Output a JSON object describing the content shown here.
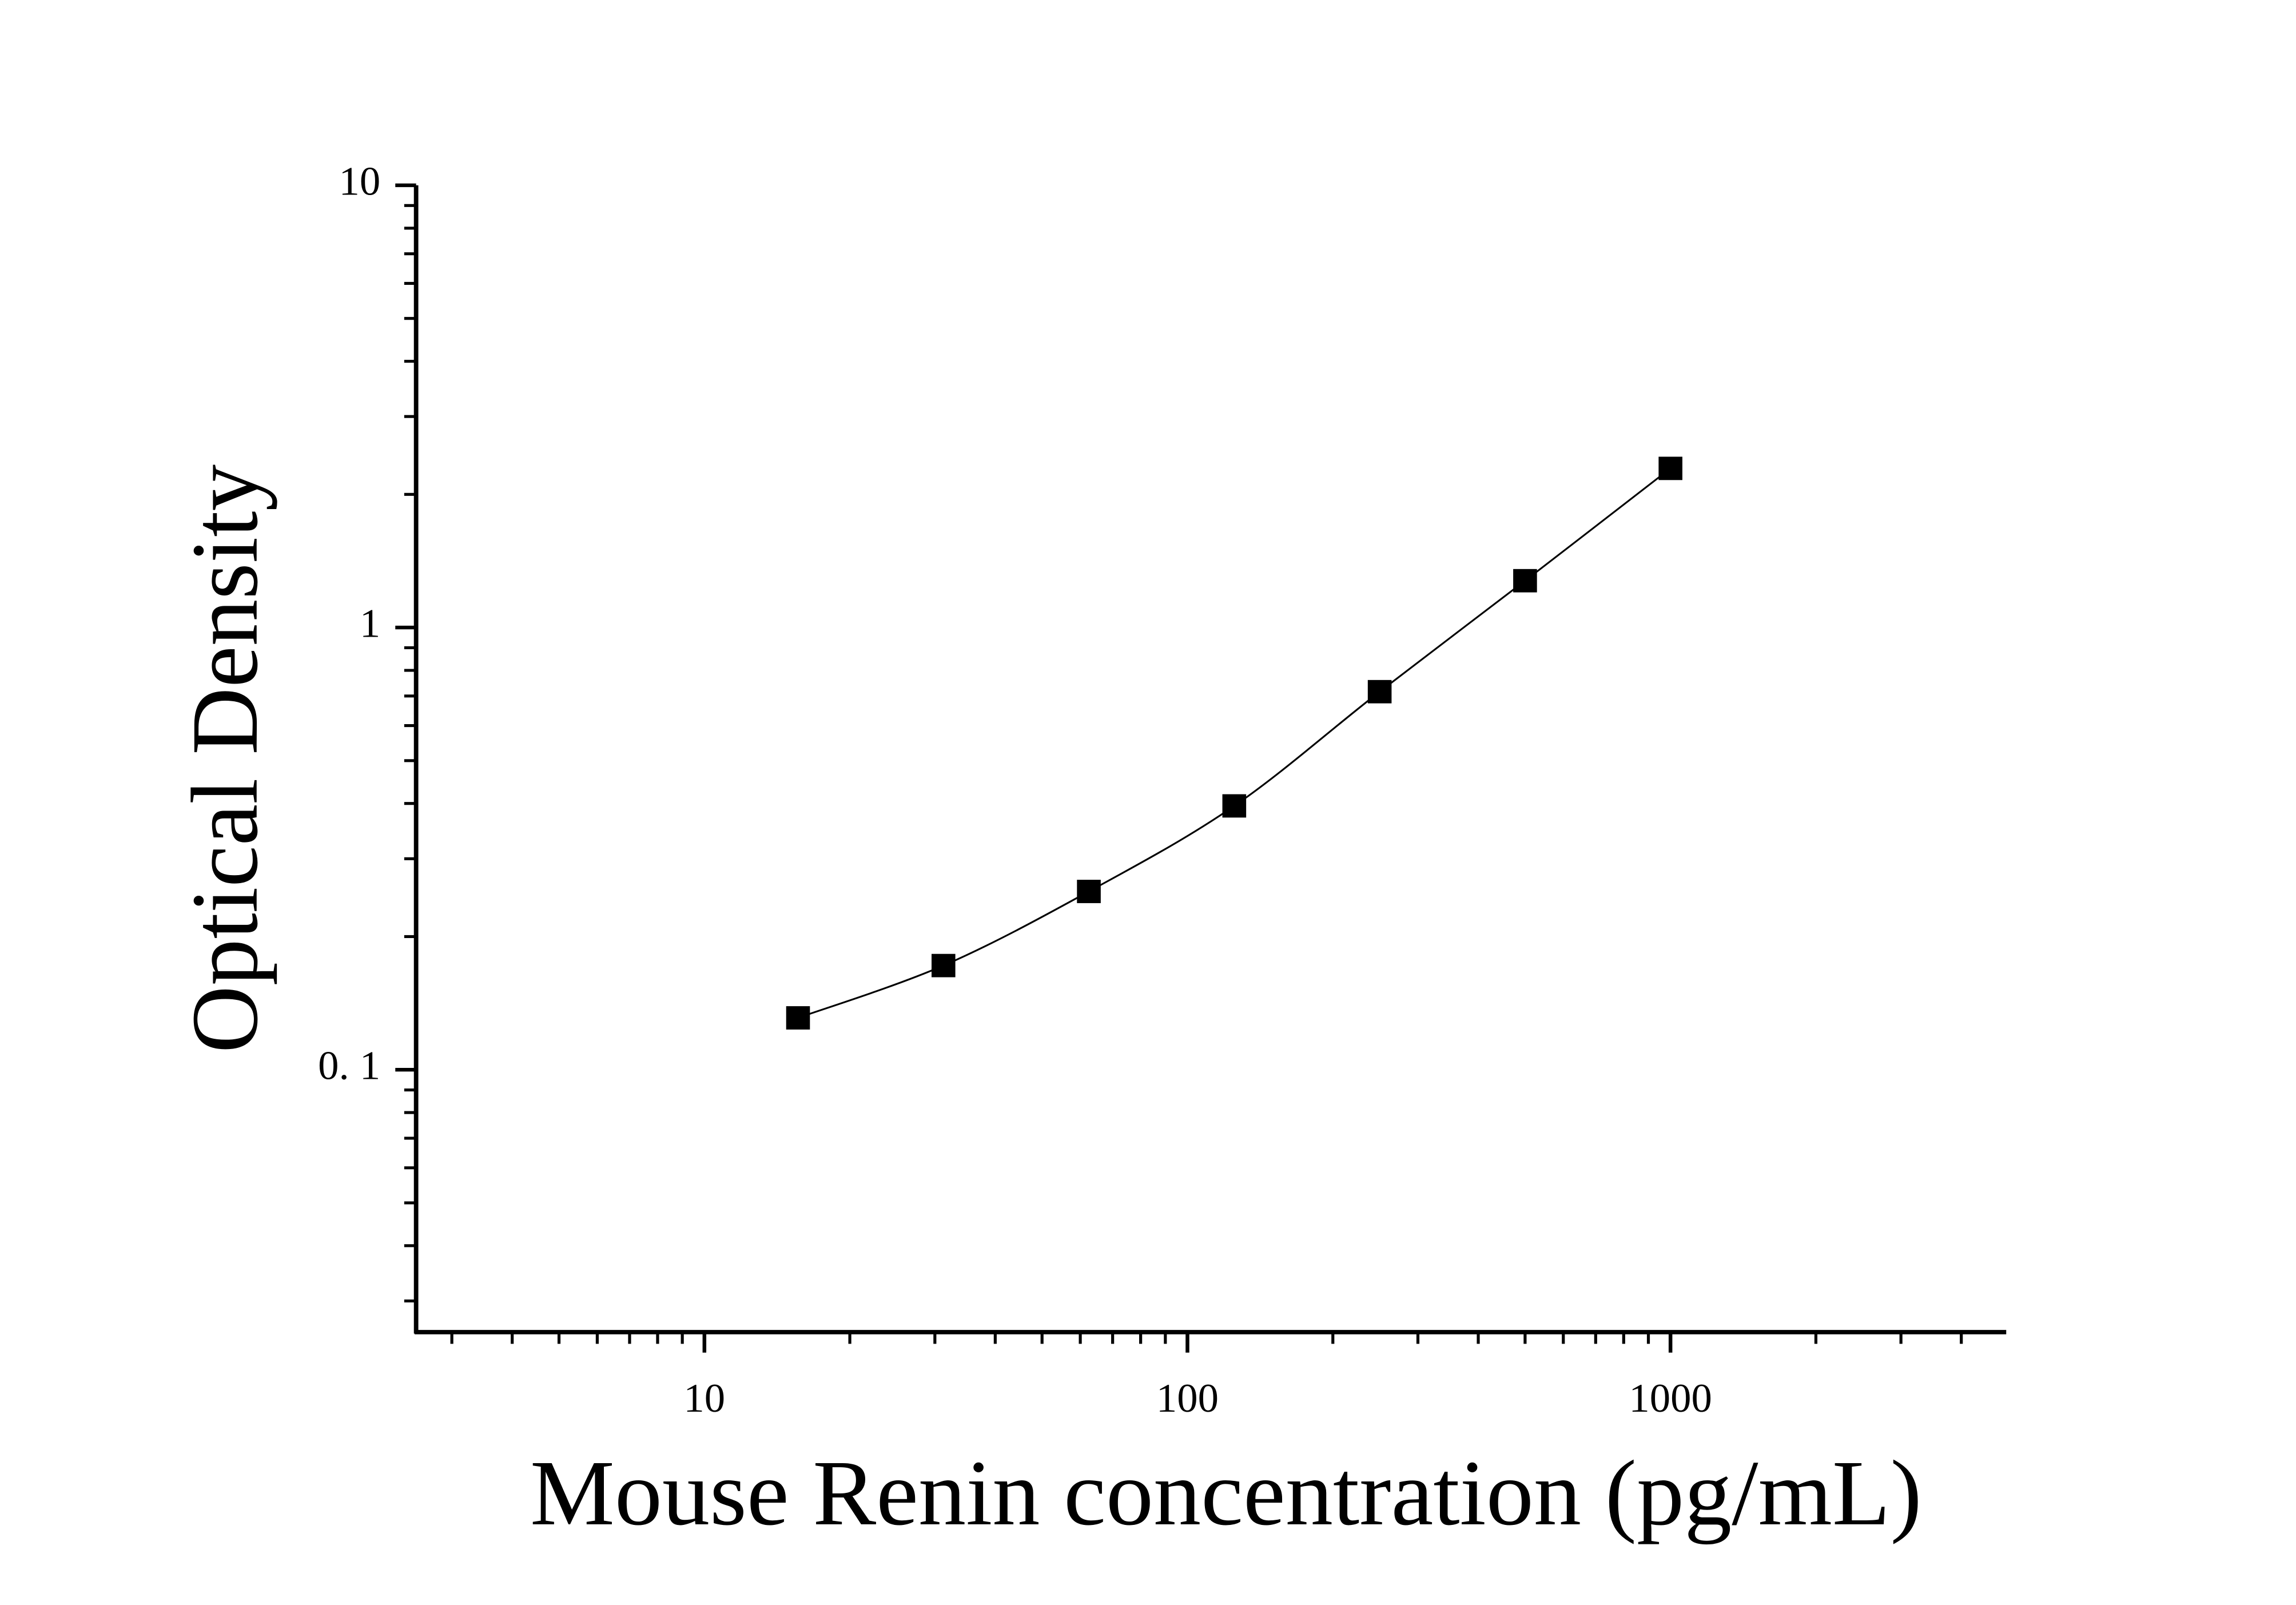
{
  "chart_data": {
    "type": "scatter",
    "xlabel": "Mouse Renin concentration (pg/mL)",
    "ylabel": "Optical Density",
    "x": [
      15.625,
      31.25,
      62.5,
      125,
      250,
      500,
      1000
    ],
    "series": [
      {
        "color": "#000000",
        "values": [
          0.131,
          0.172,
          0.253,
          0.395,
          0.716,
          1.276,
          2.29
        ]
      }
    ],
    "xscale": "log",
    "yscale": "log",
    "xlim": [
      2.53,
      4955
    ],
    "ylim": [
      0.0255,
      10
    ],
    "xticks": [
      10,
      100,
      1000
    ],
    "yticks": [
      {
        "value": 0.1,
        "label": "0. 1"
      },
      1,
      10
    ],
    "xminorticks": [
      3,
      4,
      5,
      6,
      7,
      8,
      9,
      20,
      30,
      40,
      50,
      60,
      70,
      80,
      90,
      200,
      300,
      400,
      500,
      600,
      700,
      800,
      900,
      2000,
      3000,
      4000
    ],
    "yminorticks": [
      0.03,
      0.04,
      0.05,
      0.06,
      0.07,
      0.08,
      0.09,
      0.2,
      0.3,
      0.4,
      0.5,
      0.6,
      0.7,
      0.8,
      0.9,
      2,
      3,
      4,
      5,
      6,
      7,
      8,
      9
    ],
    "fit_line": true
  }
}
